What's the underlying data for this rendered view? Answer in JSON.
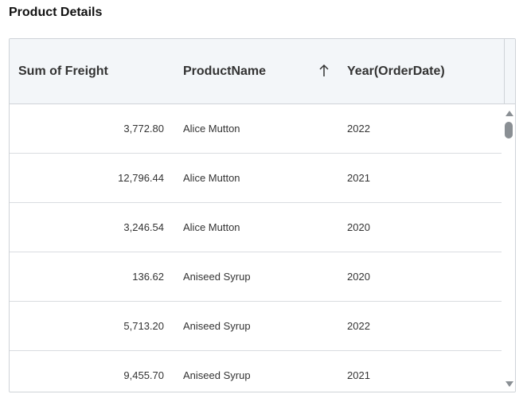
{
  "widget": {
    "title": "Product Details"
  },
  "table": {
    "columns": [
      {
        "label": "Sum of Freight"
      },
      {
        "label": "ProductName",
        "sort": "ascending",
        "sort_icon": "arrow-up-icon"
      },
      {
        "label": "Year(OrderDate)"
      }
    ],
    "rows": [
      {
        "freight": "3,772.80",
        "product": "Alice Mutton",
        "year": "2022"
      },
      {
        "freight": "12,796.44",
        "product": "Alice Mutton",
        "year": "2021"
      },
      {
        "freight": "3,246.54",
        "product": "Alice Mutton",
        "year": "2020"
      },
      {
        "freight": "136.62",
        "product": "Aniseed Syrup",
        "year": "2020"
      },
      {
        "freight": "5,713.20",
        "product": "Aniseed Syrup",
        "year": "2022"
      },
      {
        "freight": "9,455.70",
        "product": "Aniseed Syrup",
        "year": "2021"
      }
    ]
  },
  "colors": {
    "header_bg": "#f3f6f9",
    "border": "#cfd3d8",
    "scroll": "#8a8f94"
  }
}
